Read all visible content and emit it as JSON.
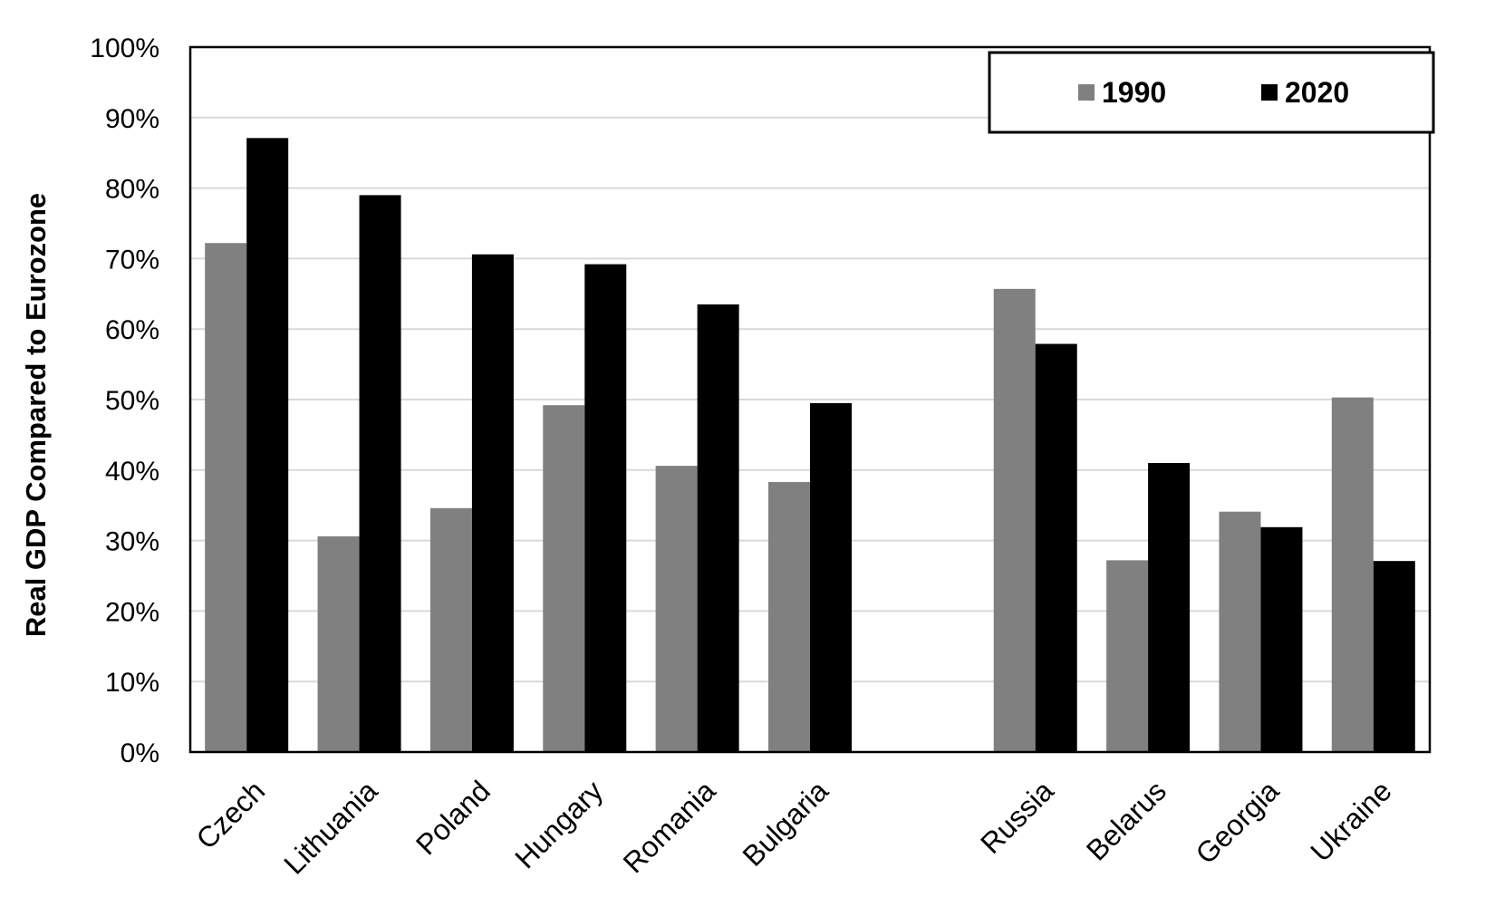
{
  "chart_data": {
    "type": "bar",
    "title": "",
    "xlabel": "",
    "ylabel": "Real GDP Compared to Eurozone",
    "ylim": [
      0,
      100
    ],
    "y_tick_labels": [
      "0%",
      "10%",
      "20%",
      "30%",
      "40%",
      "50%",
      "60%",
      "70%",
      "80%",
      "90%",
      "100%"
    ],
    "grid": true,
    "legend_position": "top-right",
    "categories": [
      "Czech",
      "Lithuania",
      "Poland",
      "Hungary",
      "Romania",
      "Bulgaria",
      "",
      "Russia",
      "Belarus",
      "Georgia",
      "Ukraine"
    ],
    "series": [
      {
        "name": "1990",
        "color": "#808080",
        "values": [
          72.2,
          30.6,
          34.6,
          49.2,
          40.6,
          38.3,
          null,
          65.7,
          27.2,
          34.1,
          50.3
        ]
      },
      {
        "name": "2020",
        "color": "#000000",
        "values": [
          87.1,
          79.0,
          70.6,
          69.2,
          63.5,
          49.5,
          null,
          57.9,
          41.0,
          31.9,
          27.1
        ]
      }
    ]
  }
}
